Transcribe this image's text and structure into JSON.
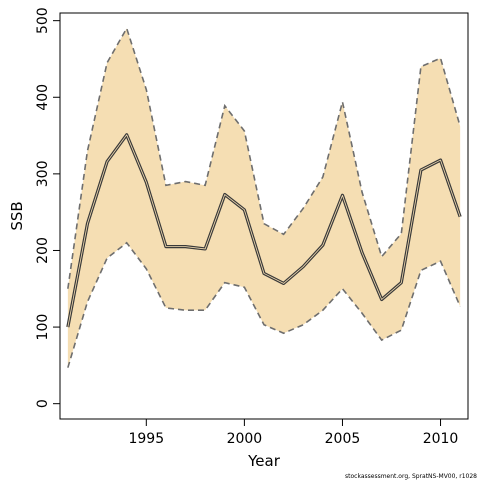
{
  "chart_data": {
    "type": "line",
    "xlabel": "Year",
    "ylabel": "SSB",
    "xlim": [
      1990.6,
      2011.4
    ],
    "ylim": [
      -20,
      510
    ],
    "x_ticks": [
      1995,
      2000,
      2005,
      2010
    ],
    "y_ticks": [
      0,
      100,
      200,
      300,
      400,
      500
    ],
    "grid": false,
    "legend": "none",
    "x": [
      1991,
      1992,
      1993,
      1994,
      1995,
      1996,
      1997,
      1998,
      1999,
      2000,
      2001,
      2002,
      2003,
      2004,
      2005,
      2006,
      2007,
      2008,
      2009,
      2010,
      2011
    ],
    "series": [
      {
        "role": "estimate",
        "values": [
          100,
          235,
          316,
          351,
          289,
          205,
          205,
          202,
          273,
          253,
          170,
          157,
          179,
          207,
          272,
          197,
          136,
          158,
          305,
          318,
          244
        ]
      },
      {
        "role": "upper",
        "values": [
          150,
          330,
          445,
          490,
          410,
          285,
          290,
          285,
          389,
          356,
          235,
          221,
          255,
          296,
          394,
          276,
          192,
          222,
          440,
          451,
          362
        ]
      },
      {
        "role": "lower",
        "values": [
          47,
          133,
          190,
          210,
          176,
          125,
          122,
          122,
          158,
          152,
          103,
          92,
          103,
          122,
          150,
          118,
          83,
          96,
          174,
          186,
          127
        ]
      }
    ],
    "colors": {
      "band_fill": "#f5deb3",
      "band_edge": "#6e6e6e",
      "estimate": "#3a3a3a",
      "axis": "#000000"
    }
  },
  "footer": "stockassessment.org, SpratNS-MV00, r1028"
}
